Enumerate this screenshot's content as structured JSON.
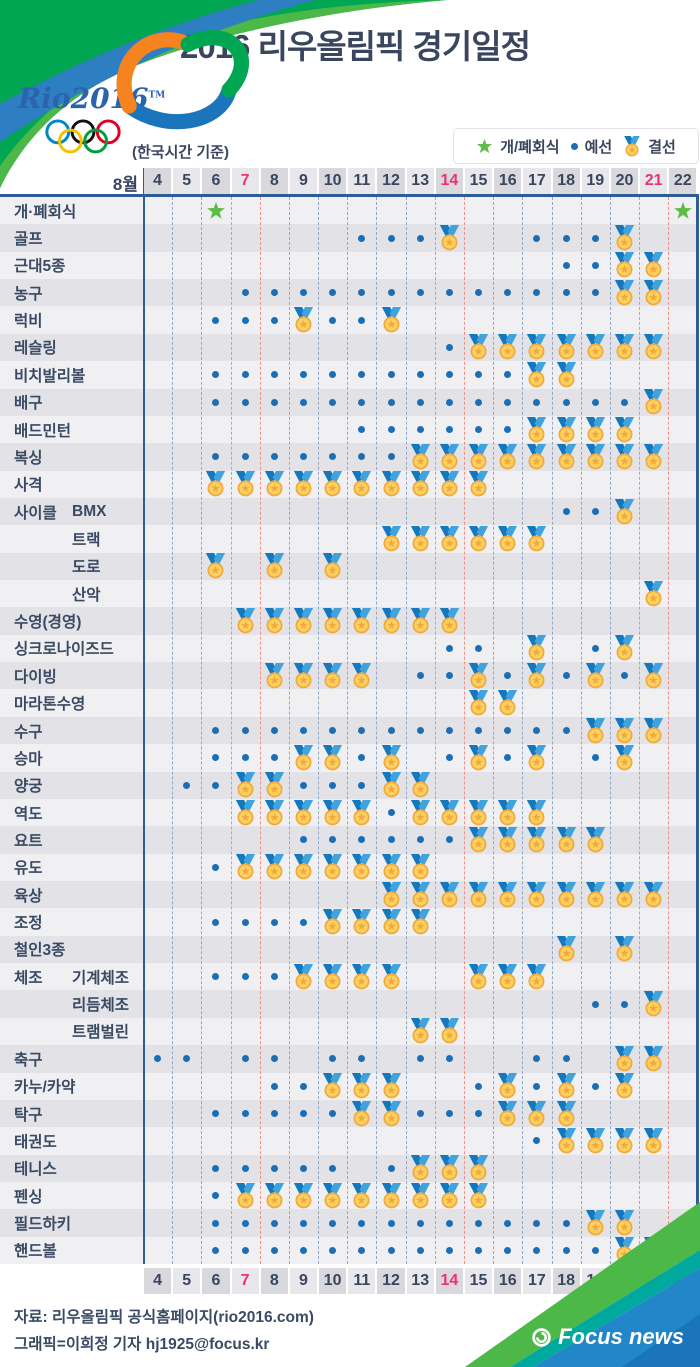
{
  "header": {
    "title": "2016 리우올림픽 경기일정",
    "timezone_note": "(한국시간 기준)",
    "logo_text": "Rio2016",
    "logo_tm": "TM"
  },
  "legend": {
    "ceremony": "개/폐회식",
    "preliminary": "예선",
    "final": "결선"
  },
  "colors": {
    "navy_text": "#39465E",
    "line_navy": "#2E5C94",
    "dot_blue": "#1B6DB5",
    "date_red": "#E8356D",
    "star_green": "#5DBB46",
    "ribbon_dark": "#1478BE",
    "ribbon_light": "#41A3DE",
    "gold": "#F1A93B",
    "gold_light": "#FCD061",
    "stripe_light": "#F0F0F3",
    "stripe_dark": "#E2E2E7",
    "dash_blue": "#8FA8C8",
    "dash_red": "#F08E86",
    "header_cell_dark": "#D8D8DD",
    "header_cell_light": "#E8E8EC",
    "swoosh_green": "#00A651",
    "swoosh_blue_stripe": "#2E7FC2",
    "band_green": "#4CB848",
    "band_teal": "#00A99D",
    "band_blue": "#2187C8",
    "band_deep_blue": "#1B75BB"
  },
  "chart_data": {
    "type": "table",
    "title": "2016 리우올림픽 경기일정",
    "month_label": "8월",
    "x_dates": [
      4,
      5,
      6,
      7,
      8,
      9,
      10,
      11,
      12,
      13,
      14,
      15,
      16,
      17,
      18,
      19,
      20,
      21,
      22
    ],
    "red_dates": [
      7,
      14,
      21
    ],
    "mark_types": {
      "star": "opening/closing ceremony",
      "dot": "preliminary",
      "medal": "final"
    },
    "rows": [
      {
        "sport": "개·폐회식",
        "star": [
          6,
          22
        ]
      },
      {
        "sport": "골프",
        "dot": [
          11,
          12,
          13,
          17,
          18,
          19
        ],
        "medal": [
          14,
          20
        ]
      },
      {
        "sport": "근대5종",
        "dot": [
          18,
          19
        ],
        "medal": [
          20,
          21
        ]
      },
      {
        "sport": "농구",
        "dot": [
          7,
          8,
          9,
          10,
          11,
          12,
          13,
          14,
          15,
          16,
          17,
          18,
          19
        ],
        "medal": [
          20,
          21
        ]
      },
      {
        "sport": "럭비",
        "dot": [
          6,
          7,
          8,
          10,
          11
        ],
        "medal": [
          9,
          12
        ]
      },
      {
        "sport": "레슬링",
        "dot": [
          14
        ],
        "medal": [
          15,
          16,
          17,
          18,
          19,
          20,
          21
        ]
      },
      {
        "sport": "비치발리볼",
        "dot": [
          6,
          7,
          8,
          9,
          10,
          11,
          12,
          13,
          14,
          15,
          16
        ],
        "medal": [
          17,
          18
        ]
      },
      {
        "sport": "배구",
        "dot": [
          6,
          7,
          8,
          9,
          10,
          11,
          12,
          13,
          14,
          15,
          16,
          17,
          18,
          19,
          20
        ],
        "medal": [
          21
        ]
      },
      {
        "sport": "배드민턴",
        "dot": [
          11,
          12,
          13,
          14,
          15,
          16
        ],
        "medal": [
          17,
          18,
          19,
          20
        ]
      },
      {
        "sport": "복싱",
        "dot": [
          6,
          7,
          8,
          9,
          10,
          11,
          12
        ],
        "medal": [
          13,
          14,
          15,
          16,
          17,
          18,
          19,
          20,
          21
        ]
      },
      {
        "sport": "사격",
        "medal": [
          6,
          7,
          8,
          9,
          10,
          11,
          12,
          13,
          14,
          15
        ]
      },
      {
        "group": "사이클",
        "sport": "BMX",
        "dot": [
          18,
          19
        ],
        "medal": [
          20
        ]
      },
      {
        "sport": "트랙",
        "sub": true,
        "medal": [
          12,
          13,
          14,
          15,
          16,
          17
        ]
      },
      {
        "sport": "도로",
        "sub": true,
        "medal": [
          6,
          8,
          10
        ]
      },
      {
        "sport": "산악",
        "sub": true,
        "medal": [
          21
        ]
      },
      {
        "sport": "수영(경영)",
        "medal": [
          7,
          8,
          9,
          10,
          11,
          12,
          13,
          14
        ]
      },
      {
        "sport": "싱크로나이즈드",
        "dot": [
          14,
          15,
          19
        ],
        "medal": [
          17,
          20
        ]
      },
      {
        "sport": "다이빙",
        "dot": [
          13,
          14,
          16,
          18,
          20
        ],
        "medal": [
          8,
          9,
          10,
          11,
          15,
          17,
          19,
          21
        ]
      },
      {
        "sport": "마라톤수영",
        "medal": [
          15,
          16
        ]
      },
      {
        "sport": "수구",
        "dot": [
          6,
          7,
          8,
          9,
          10,
          11,
          12,
          13,
          14,
          15,
          16,
          17,
          18
        ],
        "medal": [
          19,
          20,
          21
        ]
      },
      {
        "sport": "승마",
        "dot": [
          6,
          7,
          8,
          11,
          14,
          16,
          19
        ],
        "medal": [
          9,
          10,
          12,
          15,
          17,
          20
        ]
      },
      {
        "sport": "양궁",
        "dot": [
          5,
          6,
          9,
          10,
          11
        ],
        "medal": [
          7,
          8,
          12,
          13
        ]
      },
      {
        "sport": "역도",
        "dot": [
          12
        ],
        "medal": [
          7,
          8,
          9,
          10,
          11,
          13,
          14,
          15,
          16,
          17
        ]
      },
      {
        "sport": "요트",
        "dot": [
          9,
          10,
          11,
          12,
          13,
          14
        ],
        "medal": [
          15,
          16,
          17,
          18,
          19
        ]
      },
      {
        "sport": "유도",
        "dot": [
          6
        ],
        "medal": [
          7,
          8,
          9,
          10,
          11,
          12,
          13
        ]
      },
      {
        "sport": "육상",
        "medal": [
          12,
          13,
          14,
          15,
          16,
          17,
          18,
          19,
          20,
          21
        ]
      },
      {
        "sport": "조정",
        "dot": [
          6,
          7,
          8,
          9
        ],
        "medal": [
          10,
          11,
          12,
          13
        ]
      },
      {
        "sport": "철인3종",
        "medal": [
          18,
          20
        ]
      },
      {
        "group": "체조",
        "sport": "기계체조",
        "dot": [
          6,
          7,
          8
        ],
        "medal": [
          9,
          10,
          11,
          12,
          15,
          16,
          17
        ]
      },
      {
        "sport": "리듬체조",
        "sub": true,
        "dot": [
          19,
          20
        ],
        "medal": [
          21
        ]
      },
      {
        "sport": "트램벌린",
        "sub": true,
        "medal": [
          13,
          14
        ]
      },
      {
        "sport": "축구",
        "dot": [
          4,
          5,
          7,
          8,
          10,
          11,
          13,
          14,
          17,
          18
        ],
        "medal": [
          20,
          21
        ]
      },
      {
        "sport": "카누/카약",
        "dot": [
          8,
          9,
          15,
          17,
          19
        ],
        "medal": [
          10,
          11,
          12,
          16,
          18,
          20
        ]
      },
      {
        "sport": "탁구",
        "dot": [
          6,
          7,
          8,
          9,
          10,
          13,
          14,
          15
        ],
        "medal": [
          11,
          12,
          16,
          17,
          18
        ]
      },
      {
        "sport": "태권도",
        "dot": [
          17
        ],
        "medal": [
          18,
          19,
          20,
          21
        ]
      },
      {
        "sport": "테니스",
        "dot": [
          6,
          7,
          8,
          9,
          10,
          12
        ],
        "medal": [
          13,
          14,
          15
        ]
      },
      {
        "sport": "펜싱",
        "dot": [
          6
        ],
        "medal": [
          7,
          8,
          9,
          10,
          11,
          12,
          13,
          14,
          15
        ]
      },
      {
        "sport": "필드하키",
        "dot": [
          6,
          7,
          8,
          9,
          10,
          11,
          12,
          13,
          14,
          15,
          16,
          17,
          18
        ],
        "medal": [
          19,
          20
        ]
      },
      {
        "sport": "핸드볼",
        "dot": [
          6,
          7,
          8,
          9,
          10,
          11,
          12,
          13,
          14,
          15,
          16,
          17,
          18,
          19
        ],
        "medal": [
          20,
          21
        ]
      }
    ]
  },
  "footer": {
    "source": "자료: 리우올림픽 공식홈페이지(rio2016.com)",
    "credit": "그래픽=이희정 기자 hj1925@focus.kr",
    "brand": "Focus news"
  }
}
